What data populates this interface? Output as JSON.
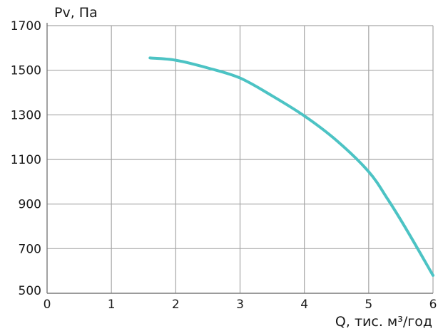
{
  "chart_data": {
    "type": "line",
    "title": "",
    "xlabel": "Q, тис. м³/год",
    "ylabel": "Pv, Па",
    "xlim": [
      0,
      6
    ],
    "ylim": [
      500,
      1700
    ],
    "x_ticks": [
      0,
      1,
      2,
      3,
      4,
      5,
      6
    ],
    "y_ticks": [
      500,
      700,
      900,
      1100,
      1300,
      1500,
      1700
    ],
    "grid": true,
    "colors": {
      "series": "#4cc3c4",
      "grid": "#a6a6a6",
      "axis": "#7a7a7a",
      "text": "#1a1a1a"
    },
    "series": [
      {
        "x": [
          1.6,
          2.0,
          2.5,
          3.0,
          3.5,
          4.0,
          4.5,
          5.0,
          5.3,
          5.6,
          6.0
        ],
        "y": [
          1555,
          1545,
          1510,
          1465,
          1385,
          1295,
          1185,
          1045,
          920,
          780,
          580
        ]
      }
    ]
  }
}
